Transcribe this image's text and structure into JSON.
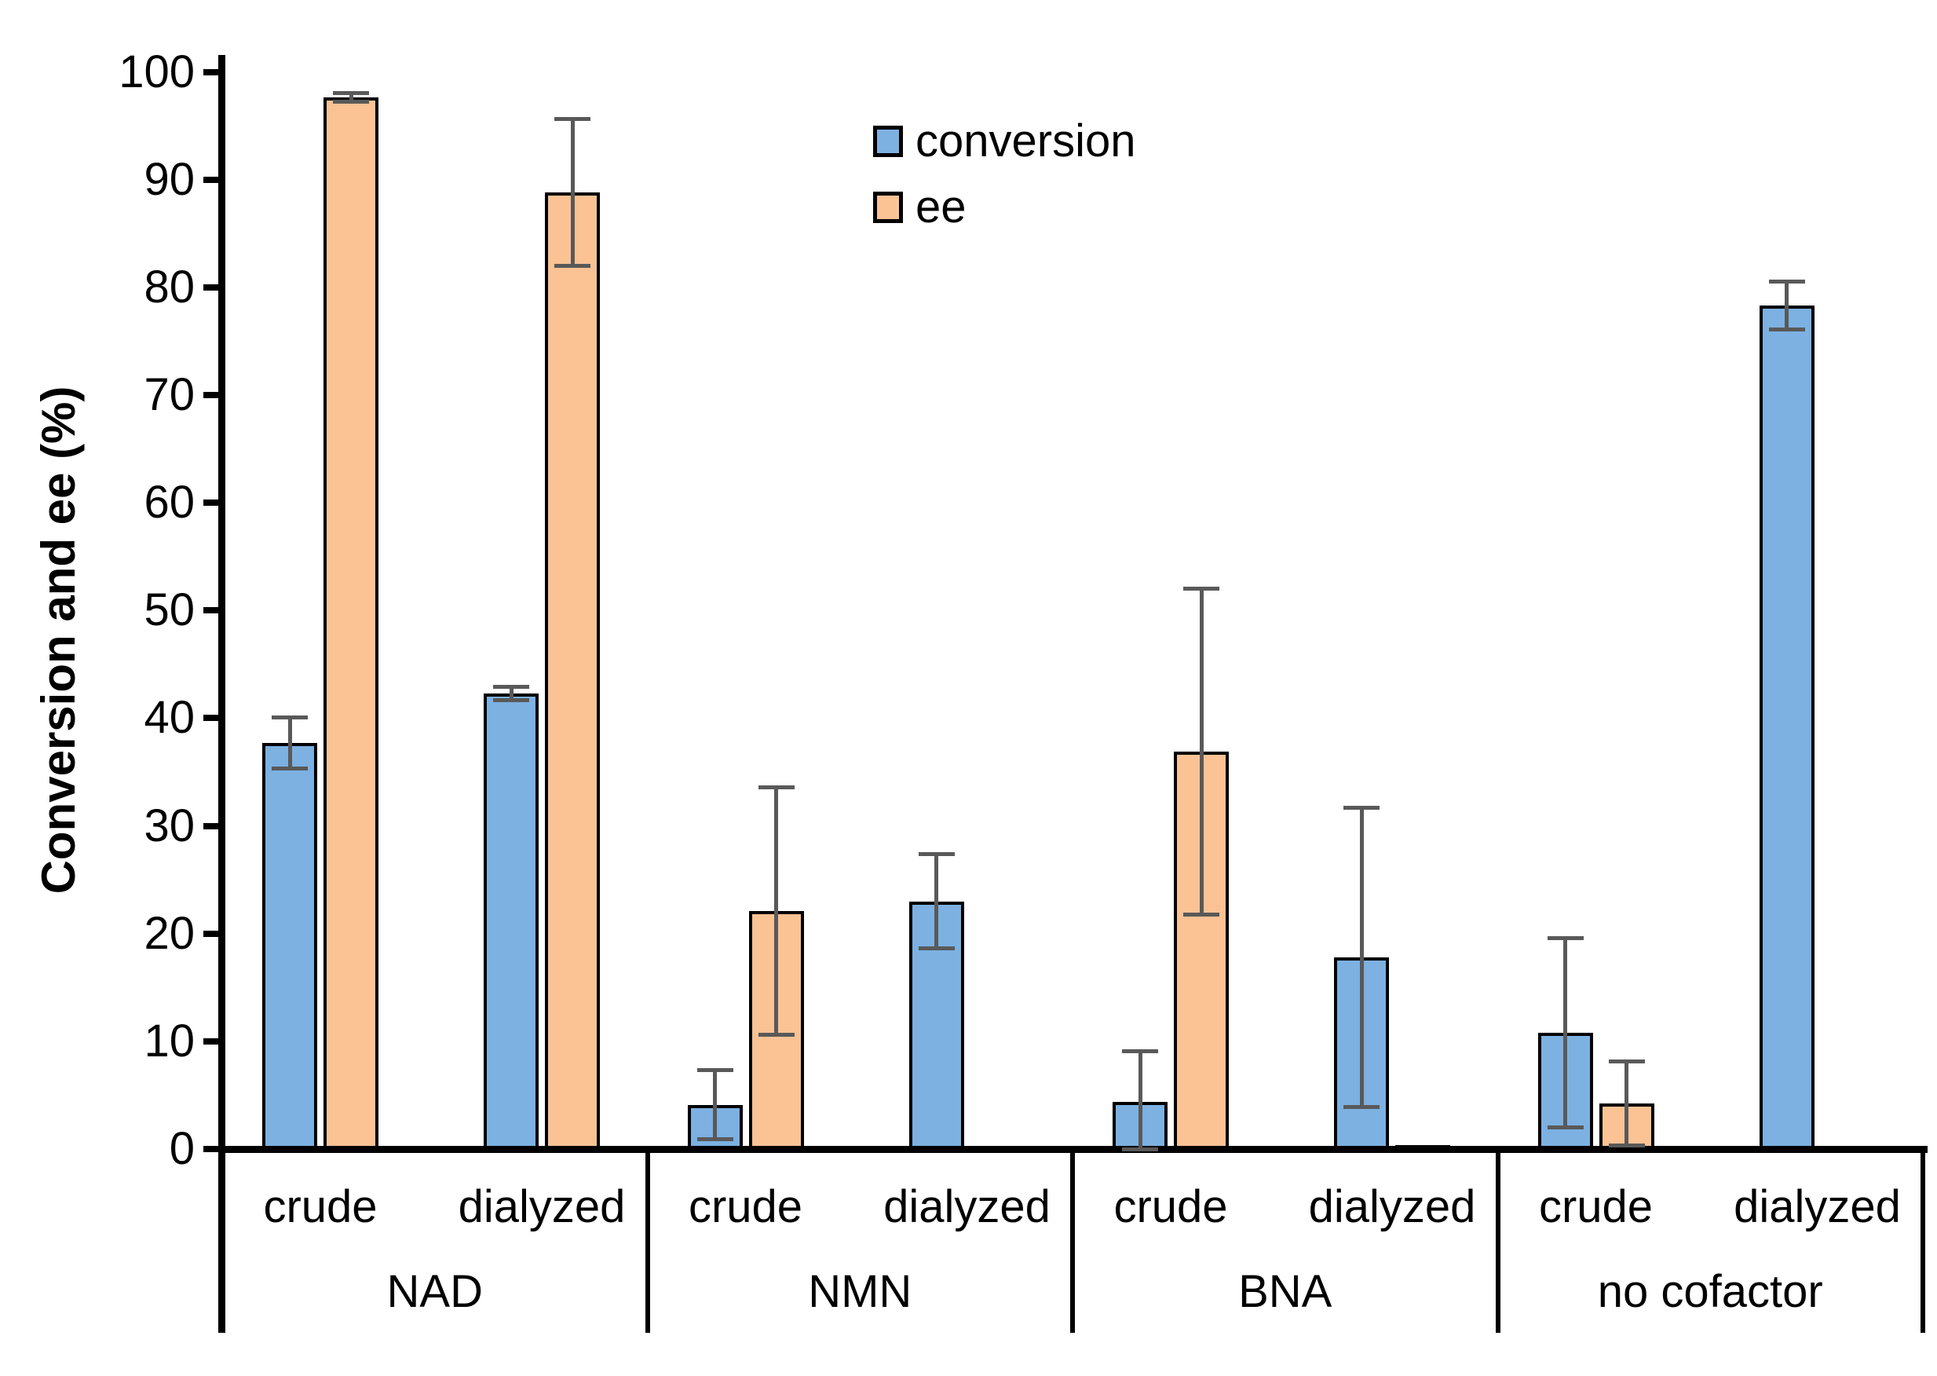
{
  "chart_data": {
    "type": "bar",
    "title": "",
    "ylabel": "Conversion and ee (%)",
    "ylim": [
      0,
      100
    ],
    "ytick_step": 10,
    "grid": false,
    "legend_position": "top-center",
    "bar_border_color": "#000000",
    "error_bar_color": "#595959",
    "series_meta": [
      {
        "key": "conversion",
        "label": "conversion",
        "fill": "#7CB1E2"
      },
      {
        "key": "ee",
        "label": "ee",
        "fill": "#FBC294"
      }
    ],
    "categories": [
      "NAD",
      "NMN",
      "BNA",
      "no cofactor"
    ],
    "conditions": [
      "crude",
      "dialyzed"
    ],
    "groups": [
      {
        "label": "NAD",
        "conditions": [
          {
            "label": "crude",
            "conversion": {
              "value": 37.7,
              "error": 2.4
            },
            "ee": {
              "value": 97.6,
              "error": 0.4
            }
          },
          {
            "label": "dialyzed",
            "conversion": {
              "value": 42.3,
              "error": 0.6
            },
            "ee": {
              "value": 88.8,
              "error": 6.8
            }
          }
        ]
      },
      {
        "label": "NMN",
        "conditions": [
          {
            "label": "crude",
            "conversion": {
              "value": 4.1,
              "error": 3.2
            },
            "ee": {
              "value": 22.1,
              "error": 11.5
            }
          },
          {
            "label": "dialyzed",
            "conversion": {
              "value": 23.0,
              "error": 4.4
            },
            "ee": {
              "value": 0.3,
              "error": 0
            }
          }
        ]
      },
      {
        "label": "BNA",
        "conditions": [
          {
            "label": "crude",
            "conversion": {
              "value": 4.4,
              "error": 4.7
            },
            "ee": {
              "value": 36.9,
              "error": 15.1
            }
          },
          {
            "label": "dialyzed",
            "conversion": {
              "value": 17.8,
              "error": 13.9
            },
            "ee": {
              "value": 0.4,
              "error": 0
            }
          }
        ]
      },
      {
        "label": "no cofactor",
        "conditions": [
          {
            "label": "crude",
            "conversion": {
              "value": 10.8,
              "error": 8.8
            },
            "ee": {
              "value": 4.2,
              "error": 3.9
            }
          },
          {
            "label": "dialyzed",
            "conversion": {
              "value": 78.3,
              "error": 2.2
            },
            "ee": {
              "value": 0,
              "error": 0
            }
          }
        ]
      }
    ]
  }
}
